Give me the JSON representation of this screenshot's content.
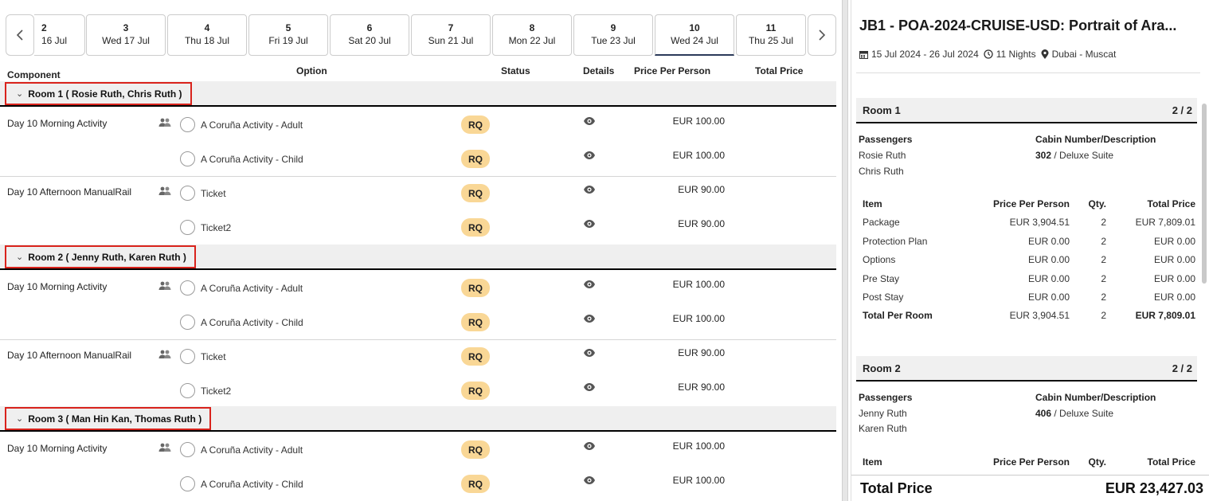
{
  "date_nav": {
    "prev_icon": "chevron-left-icon",
    "next_icon": "chevron-right-icon",
    "days": [
      {
        "num": "2",
        "label": "16 Jul"
      },
      {
        "num": "3",
        "label": "Wed 17 Jul"
      },
      {
        "num": "4",
        "label": "Thu 18 Jul"
      },
      {
        "num": "5",
        "label": "Fri 19 Jul"
      },
      {
        "num": "6",
        "label": "Sat 20 Jul"
      },
      {
        "num": "7",
        "label": "Sun 21 Jul"
      },
      {
        "num": "8",
        "label": "Mon 22 Jul"
      },
      {
        "num": "9",
        "label": "Tue 23 Jul"
      },
      {
        "num": "10",
        "label": "Wed 24 Jul",
        "active": true
      },
      {
        "num": "11",
        "label": "Thu 25 Jul"
      }
    ]
  },
  "columns": {
    "component": "Component",
    "option": "Option",
    "status": "Status",
    "details": "Details",
    "price_per_person": "Price Per Person",
    "total_price": "Total Price"
  },
  "rooms": [
    {
      "header": "Room 1 ( Rosie Ruth, Chris Ruth )",
      "rows": [
        {
          "component": "Day 10 Morning Activity",
          "option": "A Coruña Activity - Adult",
          "status": "RQ",
          "price": "EUR 100.00"
        },
        {
          "component": "",
          "option": "A Coruña Activity - Child",
          "status": "RQ",
          "price": "EUR 100.00"
        },
        {
          "component": "Day 10 Afternoon ManualRail",
          "option": "Ticket",
          "status": "RQ",
          "price": "EUR 90.00"
        },
        {
          "component": "",
          "option": "Ticket2",
          "status": "RQ",
          "price": "EUR 90.00"
        }
      ]
    },
    {
      "header": "Room 2 ( Jenny Ruth, Karen Ruth )",
      "rows": [
        {
          "component": "Day 10 Morning Activity",
          "option": "A Coruña Activity - Adult",
          "status": "RQ",
          "price": "EUR 100.00"
        },
        {
          "component": "",
          "option": "A Coruña Activity - Child",
          "status": "RQ",
          "price": "EUR 100.00"
        },
        {
          "component": "Day 10 Afternoon ManualRail",
          "option": "Ticket",
          "status": "RQ",
          "price": "EUR 90.00"
        },
        {
          "component": "",
          "option": "Ticket2",
          "status": "RQ",
          "price": "EUR 90.00"
        }
      ]
    },
    {
      "header": "Room 3 ( Man Hin Kan, Thomas Ruth )",
      "rows": [
        {
          "component": "Day 10 Morning Activity",
          "option": "A Coruña Activity - Adult",
          "status": "RQ",
          "price": "EUR 100.00"
        },
        {
          "component": "",
          "option": "A Coruña Activity - Child",
          "status": "RQ",
          "price": "EUR 100.00"
        }
      ]
    }
  ],
  "summary": {
    "title": "JB1 - POA-2024-CRUISE-USD: Portrait of Ara...",
    "dates": "15 Jul 2024 - 26 Jul 2024",
    "nights": "11 Nights",
    "route": "Dubai - Muscat",
    "passengers_label": "Passengers",
    "cabin_label": "Cabin Number/Description",
    "item_headers": {
      "item": "Item",
      "ppp": "Price Per Person",
      "qty": "Qty.",
      "total": "Total Price"
    },
    "rooms": [
      {
        "name": "Room 1",
        "count": "2 / 2",
        "passengers": [
          "Rosie Ruth",
          "Chris Ruth"
        ],
        "cabin_number": "302",
        "cabin_desc": " / Deluxe Suite",
        "items": [
          {
            "item": "Package",
            "ppp": "EUR 3,904.51",
            "qty": "2",
            "total": "EUR 7,809.01"
          },
          {
            "item": "Protection Plan",
            "ppp": "EUR 0.00",
            "qty": "2",
            "total": "EUR 0.00"
          },
          {
            "item": "Options",
            "ppp": "EUR 0.00",
            "qty": "2",
            "total": "EUR 0.00"
          },
          {
            "item": "Pre Stay",
            "ppp": "EUR 0.00",
            "qty": "2",
            "total": "EUR 0.00"
          },
          {
            "item": "Post Stay",
            "ppp": "EUR 0.00",
            "qty": "2",
            "total": "EUR 0.00"
          }
        ],
        "total_row": {
          "item": "Total Per Room",
          "ppp": "EUR 3,904.51",
          "qty": "2",
          "total": "EUR 7,809.01"
        }
      },
      {
        "name": "Room 2",
        "count": "2 / 2",
        "passengers": [
          "Jenny Ruth",
          "Karen Ruth"
        ],
        "cabin_number": "406",
        "cabin_desc": " / Deluxe Suite"
      }
    ],
    "total_label": "Total Price",
    "total_value": "EUR 23,427.03"
  },
  "colors": {
    "status_badge": "#f9d796",
    "highlight_border": "#d9231c",
    "active_tab_underline": "#2b3a5a"
  }
}
